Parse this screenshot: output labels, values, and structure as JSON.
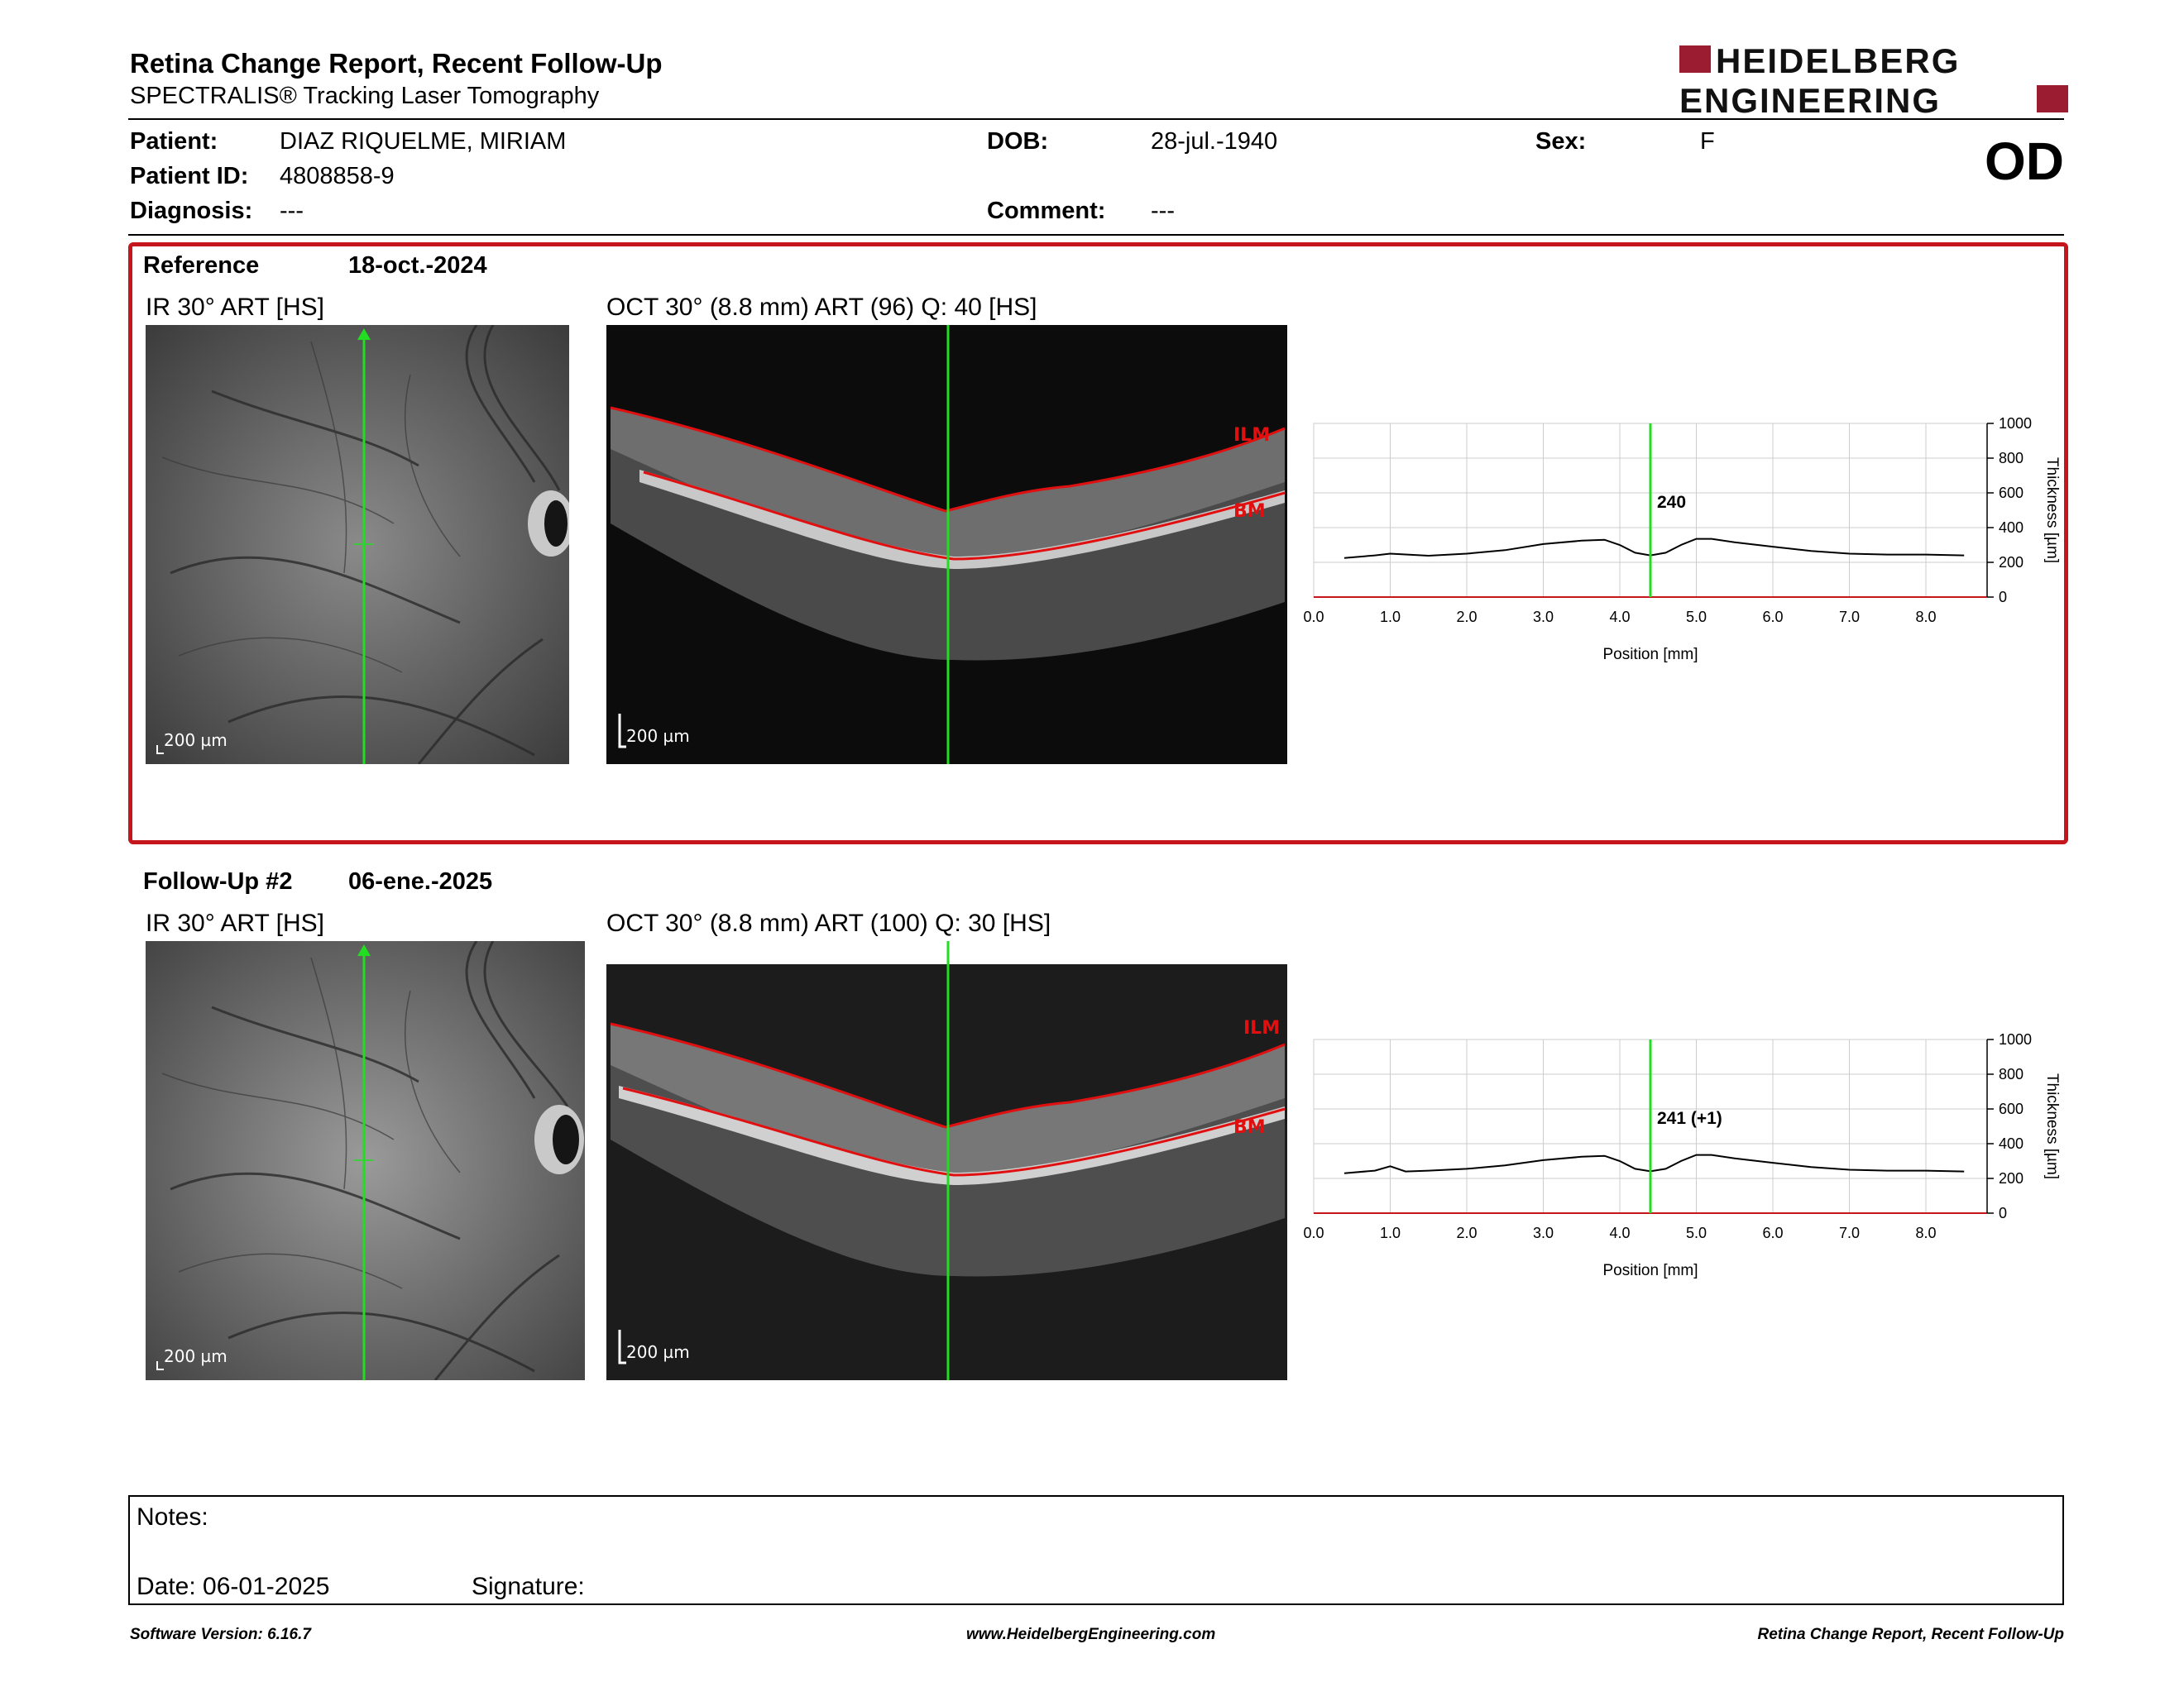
{
  "header": {
    "title": "Retina Change Report, Recent Follow-Up",
    "subtitle": "SPECTRALIS® Tracking Laser Tomography",
    "logo_line1": "HEIDELBERG",
    "logo_line2": "ENGINEERING",
    "eye": "OD"
  },
  "patient": {
    "name_label": "Patient:",
    "name": "DIAZ RIQUELME, MIRIAM",
    "id_label": "Patient ID:",
    "id": "4808858-9",
    "diagnosis_label": "Diagnosis:",
    "diagnosis": "---",
    "dob_label": "DOB:",
    "dob": "28-jul.-1940",
    "comment_label": "Comment:",
    "comment": "---",
    "sex_label": "Sex:",
    "sex": "F"
  },
  "reference": {
    "label": "Reference",
    "date": "18-oct.-2024",
    "ir_caption": "IR 30° ART [HS]",
    "oct_caption": "OCT 30° (8.8 mm) ART (96) Q: 40 [HS]",
    "scale": "200 µm",
    "ilm": "ILM",
    "bm": "BM",
    "marker_value": "240"
  },
  "followup": {
    "label": "Follow-Up #2",
    "date": "06-ene.-2025",
    "ir_caption": "IR 30° ART [HS]",
    "oct_caption": "OCT 30° (8.8 mm) ART (100) Q: 30 [HS]",
    "scale": "200 µm",
    "ilm": "ILM",
    "bm": "BM",
    "marker_value": "241 (+1)"
  },
  "chart_data": [
    {
      "type": "line",
      "title": "",
      "xlabel": "Position [mm]",
      "ylabel": "Thickness [µm]",
      "xlim": [
        0,
        8.8
      ],
      "ylim": [
        0,
        1000
      ],
      "xticks": [
        "0.0",
        "1.0",
        "2.0",
        "3.0",
        "4.0",
        "5.0",
        "6.0",
        "7.0",
        "8.0"
      ],
      "yticks": [
        "0",
        "200",
        "400",
        "600",
        "800",
        "1000"
      ],
      "grid": true,
      "marker_x": 4.4,
      "marker_label": "240",
      "series": [
        {
          "x": [
            0.4,
            0.8,
            1.0,
            1.5,
            2.0,
            2.5,
            3.0,
            3.5,
            3.8,
            4.0,
            4.2,
            4.4,
            4.6,
            4.8,
            5.0,
            5.2,
            5.5,
            6.0,
            6.5,
            7.0,
            7.5,
            8.0,
            8.5
          ],
          "y": [
            225,
            240,
            250,
            238,
            250,
            270,
            305,
            325,
            330,
            300,
            255,
            240,
            255,
            300,
            335,
            335,
            315,
            290,
            265,
            250,
            245,
            245,
            240
          ]
        }
      ]
    },
    {
      "type": "line",
      "title": "",
      "xlabel": "Position [mm]",
      "ylabel": "Thickness [µm]",
      "xlim": [
        0,
        8.8
      ],
      "ylim": [
        0,
        1000
      ],
      "xticks": [
        "0.0",
        "1.0",
        "2.0",
        "3.0",
        "4.0",
        "5.0",
        "6.0",
        "7.0",
        "8.0"
      ],
      "yticks": [
        "0",
        "200",
        "400",
        "600",
        "800",
        "1000"
      ],
      "grid": true,
      "marker_x": 4.4,
      "marker_label": "241 (+1)",
      "series": [
        {
          "x": [
            0.4,
            0.8,
            1.0,
            1.2,
            1.5,
            2.0,
            2.5,
            3.0,
            3.5,
            3.8,
            4.0,
            4.2,
            4.4,
            4.6,
            4.8,
            5.0,
            5.2,
            5.5,
            6.0,
            6.5,
            7.0,
            7.5,
            8.0,
            8.5
          ],
          "y": [
            230,
            245,
            270,
            240,
            245,
            255,
            275,
            305,
            325,
            330,
            300,
            255,
            241,
            255,
            300,
            335,
            335,
            315,
            290,
            265,
            250,
            245,
            245,
            240
          ]
        }
      ]
    }
  ],
  "notes": {
    "notes_label": "Notes:",
    "date_label": "Date: 06-01-2025",
    "signature_label": "Signature:"
  },
  "footer": {
    "left": "Software Version: 6.16.7",
    "center": "www.HeidelbergEngineering.com",
    "right": "Retina Change Report, Recent Follow-Up"
  },
  "colors": {
    "accent_red": "#c4161c",
    "layer_red": "#e01010",
    "marker_green": "#22dd22",
    "logo_red": "#9b1b30"
  }
}
